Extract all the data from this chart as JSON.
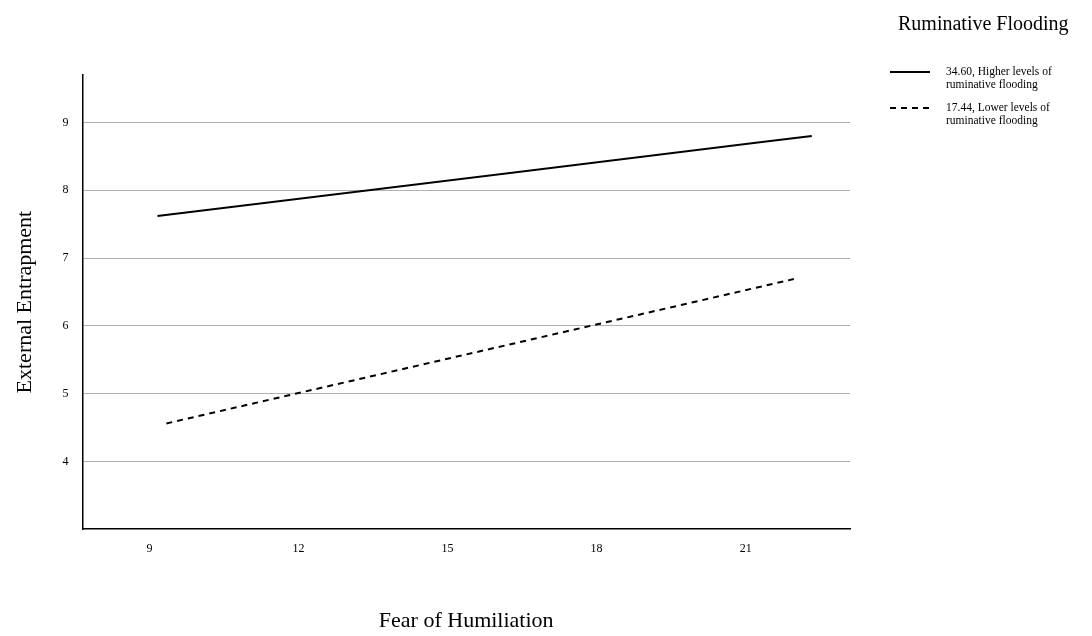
{
  "chart_data": {
    "type": "line",
    "xlabel": "Fear of Humiliation",
    "ylabel": "External Entrapment",
    "legend_title": "Ruminative Flooding",
    "series": [
      {
        "name": "34.60, Higher levels of ruminative flooding",
        "color": "#000000",
        "line_style": "solid",
        "x": [
          9.16,
          22.33
        ],
        "values": [
          7.62,
          8.8
        ]
      },
      {
        "name": "17.44, Lower levels of ruminative flooding",
        "color": "#000000",
        "line_style": "dashed",
        "x": [
          9.34,
          21.97
        ],
        "values": [
          4.56,
          6.69
        ]
      }
    ],
    "xlim": [
      7.65,
      23.1
    ],
    "xticks": [
      9,
      12,
      15,
      18,
      21
    ],
    "ylim": [
      3,
      9.7
    ],
    "yticks": [
      4,
      5,
      6,
      7,
      8,
      9
    ],
    "grid": "y",
    "legend": "top right",
    "marker": "none"
  }
}
